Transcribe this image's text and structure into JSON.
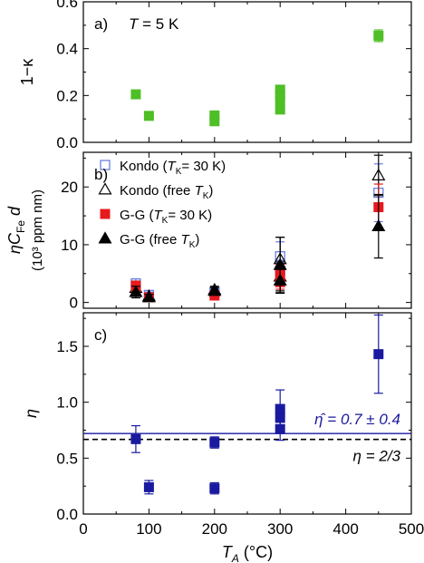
{
  "chart_data": [
    {
      "type": "scatter",
      "panel": "a)",
      "annotation": "T = 5 K",
      "annotation_parts": {
        "symbol": "T",
        "rest": " = 5 K"
      },
      "ylabel": "1−κ",
      "ylim": [
        0.0,
        0.6
      ],
      "yticks": [
        "0.0",
        "0.2",
        "0.4",
        "0.6"
      ],
      "xlim": [
        0,
        500
      ],
      "series": [
        {
          "color": "#4fbf26",
          "marker": "square",
          "points": [
            {
              "x": 80,
              "y": 0.205,
              "err": 0.012
            },
            {
              "x": 100,
              "y": 0.113,
              "err": 0.008
            },
            {
              "x": 200,
              "y": 0.115,
              "err": 0.01
            },
            {
              "x": 200,
              "y": 0.09,
              "err": 0.01
            },
            {
              "x": 300,
              "y": 0.225,
              "err": 0.012
            },
            {
              "x": 300,
              "y": 0.205,
              "err": 0.012
            },
            {
              "x": 300,
              "y": 0.18,
              "err": 0.012
            },
            {
              "x": 300,
              "y": 0.14,
              "err": 0.01
            },
            {
              "x": 450,
              "y": 0.455,
              "err": 0.025
            }
          ]
        }
      ]
    },
    {
      "type": "scatter",
      "panel": "b)",
      "ylabel_main": "ηC",
      "ylabel_sub": "Fe",
      "ylabel_end": " d",
      "ylabel2": "(10³ ppm nm)",
      "ylim": [
        -1,
        26
      ],
      "yticks": [
        "0",
        "10",
        "20"
      ],
      "xlim": [
        0,
        500
      ],
      "legend_position": "top-left",
      "legend": [
        {
          "label": "Kondo (",
          "sym": "T",
          "sub": "K",
          "tail": "= 30 K)",
          "marker": "open-square",
          "color": "#6b7fe0"
        },
        {
          "label": "Kondo (free ",
          "sym": "T",
          "sub": "K",
          "tail": ")",
          "marker": "open-triangle",
          "color": "#000000"
        },
        {
          "label": "G-G (",
          "sym": "T",
          "sub": "K",
          "tail": "= 30 K)",
          "marker": "filled-square",
          "color": "#e8191c"
        },
        {
          "label": "G-G (free ",
          "sym": "T",
          "sub": "K",
          "tail": ")",
          "marker": "filled-triangle",
          "color": "#000000"
        }
      ],
      "series": [
        {
          "marker": "open-square",
          "color": "#6b7fe0",
          "points": [
            {
              "x": 80,
              "y": 3.3,
              "err": 0.8
            },
            {
              "x": 100,
              "y": 1.3,
              "err": 0.5
            },
            {
              "x": 200,
              "y": 1.8,
              "err": 0.6
            },
            {
              "x": 300,
              "y": 8.0,
              "err": 2.5
            },
            {
              "x": 300,
              "y": 5.5,
              "err": 1.8
            },
            {
              "x": 450,
              "y": 19.0,
              "err": 5.0
            }
          ]
        },
        {
          "marker": "open-triangle",
          "color": "#000000",
          "points": [
            {
              "x": 80,
              "y": 2.5,
              "err": 1.2
            },
            {
              "x": 100,
              "y": 1.1,
              "err": 0.5
            },
            {
              "x": 200,
              "y": 2.2,
              "err": 0.6
            },
            {
              "x": 300,
              "y": 7.5,
              "err": 3.8
            },
            {
              "x": 300,
              "y": 4.5,
              "err": 2.5
            },
            {
              "x": 450,
              "y": 22.0,
              "err": 3.5
            }
          ]
        },
        {
          "marker": "filled-square",
          "color": "#e8191c",
          "points": [
            {
              "x": 80,
              "y": 2.8,
              "err": 0.9
            },
            {
              "x": 100,
              "y": 0.9,
              "err": 0.4
            },
            {
              "x": 200,
              "y": 1.2,
              "err": 0.5
            },
            {
              "x": 300,
              "y": 5.0,
              "err": 1.6
            },
            {
              "x": 300,
              "y": 3.5,
              "err": 1.2
            },
            {
              "x": 450,
              "y": 16.5,
              "err": 4.0
            }
          ]
        },
        {
          "marker": "filled-triangle",
          "color": "#000000",
          "points": [
            {
              "x": 80,
              "y": 1.8,
              "err": 1.0
            },
            {
              "x": 100,
              "y": 0.9,
              "err": 0.5
            },
            {
              "x": 200,
              "y": 2.0,
              "err": 0.6
            },
            {
              "x": 300,
              "y": 6.5,
              "err": 4.8
            },
            {
              "x": 300,
              "y": 3.8,
              "err": 2.2
            },
            {
              "x": 450,
              "y": 13.2,
              "err": 5.5
            }
          ]
        }
      ]
    },
    {
      "type": "scatter",
      "panel": "c)",
      "ylabel": "η",
      "ylim": [
        0.0,
        1.8
      ],
      "yticks": [
        "0.0",
        "0.5",
        "1.0",
        "1.5"
      ],
      "xlim": [
        0,
        500
      ],
      "xticks": [
        "0",
        "100",
        "200",
        "300",
        "400",
        "500"
      ],
      "xlabel_main": "T",
      "xlabel_sub": "A",
      "xlabel_unit": " (°C)",
      "mean_line": {
        "y": 0.72,
        "label": "η̂ = 0.7 ± 0.4",
        "color": "#1a1aa0"
      },
      "reference_line": {
        "y": 0.667,
        "label": "η = 2/3",
        "style": "dashed",
        "color": "#000000"
      },
      "series": [
        {
          "marker": "filled-square",
          "color": "#1a1aa0",
          "points": [
            {
              "x": 80,
              "y": 0.67,
              "err": 0.12
            },
            {
              "x": 100,
              "y": 0.24,
              "err": 0.06
            },
            {
              "x": 200,
              "y": 0.64,
              "err": 0.05
            },
            {
              "x": 200,
              "y": 0.23,
              "err": 0.05
            },
            {
              "x": 300,
              "y": 0.94,
              "err": 0.17
            },
            {
              "x": 300,
              "y": 0.86,
              "err": 0.1
            },
            {
              "x": 300,
              "y": 0.76,
              "err": 0.1
            },
            {
              "x": 450,
              "y": 1.43,
              "err": 0.35
            }
          ]
        }
      ]
    }
  ]
}
